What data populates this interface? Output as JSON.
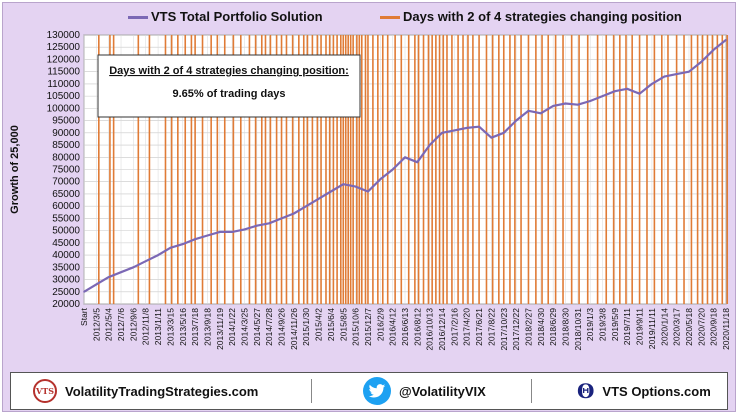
{
  "legend": {
    "portfolio_label": "VTS Total Portfolio Solution",
    "signal_label": "Days with 2 of 4 strategies changing position"
  },
  "annotation": {
    "line1": "Days with 2 of 4 strategies changing position:",
    "line2": "9.65% of trading days"
  },
  "footer": {
    "site": "VolatilityTradingStrategies.com",
    "twitter": "@VolatilityVIX",
    "options": "VTS Options.com",
    "vts_badge": "VTS",
    "icons": [
      "vts-logo-icon",
      "twitter-bird-icon",
      "theta-icon"
    ]
  },
  "colors": {
    "background": "#e4d3f2",
    "portfolio_line": "#7b68b5",
    "signal_bars": "#e07b36"
  },
  "chart_data": {
    "type": "line",
    "title": "",
    "xlabel": "",
    "ylabel": "Growth of 25,000",
    "ylim": [
      20000,
      130000
    ],
    "yticks": [
      20000,
      25000,
      30000,
      35000,
      40000,
      45000,
      50000,
      55000,
      60000,
      65000,
      70000,
      75000,
      80000,
      85000,
      90000,
      95000,
      100000,
      105000,
      110000,
      115000,
      120000,
      125000,
      130000
    ],
    "yticks_labels": [
      "20000",
      "25000",
      "30000",
      "35000",
      "40000",
      "45000",
      "50000",
      "55000",
      "60000",
      "65000",
      "70000",
      "75000",
      "80000",
      "85000",
      "90000",
      "95000",
      "100000",
      "105000",
      "110000",
      "115000",
      "120000",
      "125000",
      "130000"
    ],
    "x_tick_labels": [
      "Start",
      "2012/3/5",
      "2012/5/4",
      "2012/7/6",
      "2012/9/6",
      "2012/11/8",
      "2013/1/11",
      "2013/3/15",
      "2013/5/16",
      "2013/7/18",
      "2013/9/18",
      "2013/11/19",
      "2014/1/22",
      "2014/3/25",
      "2014/5/27",
      "2014/7/28",
      "2014/9/26",
      "2014/11/26",
      "2015/1/30",
      "2015/4/2",
      "2015/6/4",
      "2015/8/5",
      "2015/10/6",
      "2015/12/7",
      "2016/2/9",
      "2016/4/12",
      "2016/6/13",
      "2016/8/12",
      "2016/10/13",
      "2016/12/14",
      "2017/2/16",
      "2017/4/20",
      "2017/6/21",
      "2017/8/22",
      "2017/10/23",
      "2017/12/22",
      "2018/2/27",
      "2018/4/30",
      "2018/6/29",
      "2018/8/30",
      "2018/10/31",
      "2019/1/3",
      "2019/3/8",
      "2019/5/9",
      "2019/7/11",
      "2019/9/11",
      "2019/11/11",
      "2020/1/14",
      "2020/3/17",
      "2020/5/18",
      "2020/7/20",
      "2020/9/18",
      "2020/11/18"
    ],
    "legend_position": "top",
    "grid": true,
    "series": [
      {
        "name": "VTS Total Portfolio Solution",
        "x_tick_index": [
          0,
          1,
          2,
          3,
          4,
          5,
          6,
          7,
          8,
          9,
          10,
          11,
          12,
          13,
          14,
          15,
          16,
          17,
          18,
          19,
          20,
          21,
          22,
          23,
          24,
          25,
          26,
          27,
          28,
          29,
          30,
          31,
          32,
          33,
          34,
          35,
          36,
          37,
          38,
          39,
          40,
          41,
          42,
          43,
          44,
          45,
          46,
          47,
          48,
          49,
          50,
          51,
          52
        ],
        "values": [
          25000,
          28000,
          31000,
          33000,
          35000,
          37500,
          40000,
          43000,
          44500,
          46500,
          48000,
          49500,
          49500,
          50500,
          52000,
          53000,
          55000,
          57000,
          60000,
          63000,
          66000,
          69000,
          68000,
          66000,
          71000,
          75000,
          80000,
          78000,
          85000,
          90000,
          91000,
          92000,
          92500,
          88000,
          90000,
          95000,
          99000,
          98000,
          101000,
          102000,
          101500,
          103000,
          105000,
          107000,
          108000,
          106000,
          110000,
          113000,
          114000,
          115000,
          119000,
          124000,
          128000
        ]
      },
      {
        "name": "Days with 2 of 4 strategies changing position",
        "x_tick_index": [
          1.2,
          2.1,
          2.4,
          4.4,
          5.3,
          6.6,
          7.1,
          7.6,
          8.2,
          8.7,
          9.0,
          9.6,
          10.3,
          10.8,
          11.4,
          12.1,
          12.7,
          13.4,
          13.9,
          14.4,
          14.7,
          15.1,
          15.6,
          16.0,
          16.4,
          16.9,
          17.4,
          17.8,
          18.1,
          18.5,
          18.9,
          19.2,
          19.6,
          19.9,
          20.2,
          20.5,
          20.8,
          21.0,
          21.2,
          21.4,
          21.6,
          21.8,
          22.1,
          22.3,
          22.5,
          22.8,
          23.0,
          23.4,
          23.8,
          24.2,
          24.6,
          25.2,
          25.7,
          26.3,
          26.8,
          27.1,
          27.5,
          27.9,
          28.2,
          28.5,
          28.8,
          29.1,
          29.4,
          29.8,
          30.3,
          30.7,
          31.1,
          31.5,
          32.0,
          32.6,
          33.1,
          33.6,
          34.0,
          34.5,
          34.9,
          35.4,
          36.0,
          36.6,
          37.1,
          37.6,
          38.2,
          38.8,
          39.5,
          40.1,
          40.8,
          41.6,
          42.3,
          42.9,
          43.4,
          43.9,
          44.4,
          45.0,
          45.6,
          46.2,
          46.8,
          47.3,
          48.0,
          48.6,
          49.2,
          49.7,
          50.1,
          50.5,
          50.9,
          51.3,
          51.7,
          52.1
        ]
      }
    ],
    "annotation": "Days with 2 of 4 strategies changing position: 9.65% of trading days"
  }
}
